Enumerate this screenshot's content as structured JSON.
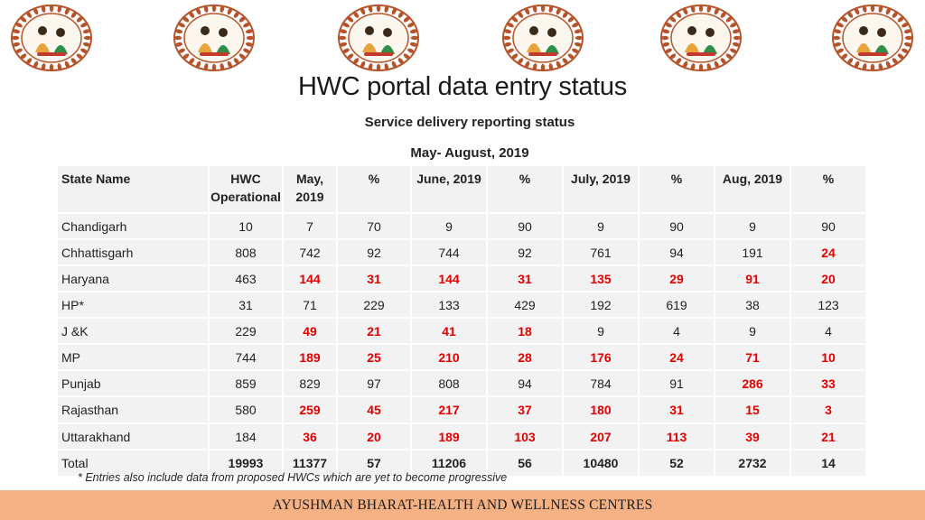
{
  "title": "HWC portal data entry status",
  "subtitle": "Service delivery reporting status",
  "period": "May- August, 2019",
  "logos": [
    "care-giver-illustration",
    "health-worker-illustration",
    "community-meeting-illustration",
    "screen-presentation-illustration",
    "counselling-illustration",
    "community-group-illustration"
  ],
  "table": {
    "headers": [
      "State Name",
      "HWC Operational",
      "May, 2019",
      "%",
      "June, 2019",
      "%",
      "July, 2019",
      "%",
      "Aug, 2019",
      "%"
    ],
    "rows": [
      {
        "cells": [
          "Chandigarh",
          "10",
          "7",
          "70",
          "9",
          "90",
          "9",
          "90",
          "9",
          "90"
        ],
        "red": []
      },
      {
        "cells": [
          "Chhattisgarh",
          "808",
          "742",
          "92",
          "744",
          "92",
          "761",
          "94",
          "191",
          "24"
        ],
        "red": [
          9
        ]
      },
      {
        "cells": [
          "Haryana",
          "463",
          "144",
          "31",
          "144",
          "31",
          "135",
          "29",
          "91",
          "20"
        ],
        "red": [
          2,
          3,
          4,
          5,
          6,
          7,
          8,
          9
        ]
      },
      {
        "cells": [
          "HP*",
          "31",
          "71",
          "229",
          "133",
          "429",
          "192",
          "619",
          "38",
          "123"
        ],
        "red": []
      },
      {
        "cells": [
          "J &K",
          "229",
          "49",
          "21",
          "41",
          "18",
          "9",
          "4",
          "9",
          "4"
        ],
        "red": [
          2,
          3,
          4,
          5
        ]
      },
      {
        "cells": [
          "MP",
          "744",
          "189",
          "25",
          "210",
          "28",
          "176",
          "24",
          "71",
          "10"
        ],
        "red": [
          2,
          3,
          4,
          5,
          6,
          7,
          8,
          9
        ]
      },
      {
        "cells": [
          "Punjab",
          "859",
          "829",
          "97",
          "808",
          "94",
          "784",
          "91",
          "286",
          "33"
        ],
        "red": [
          8,
          9
        ]
      },
      {
        "cells": [
          "Rajasthan",
          "580",
          "259",
          "45",
          "217",
          "37",
          "180",
          "31",
          "15",
          "3"
        ],
        "red": [
          2,
          3,
          4,
          5,
          6,
          7,
          8,
          9
        ]
      },
      {
        "cells": [
          "Uttarakhand",
          "184",
          "36",
          "20",
          "189",
          "103",
          "207",
          "113",
          "39",
          "21"
        ],
        "red": [
          2,
          3,
          4,
          5,
          6,
          7,
          8,
          9
        ]
      },
      {
        "cells": [
          "Total",
          "19993",
          "11377",
          "57",
          "11206",
          "56",
          "10480",
          "52",
          "2732",
          "14"
        ],
        "bold": true,
        "red": []
      }
    ]
  },
  "footnote": "* Entries also include data from proposed HWCs which are yet to become progressive",
  "footer": "AYUSHMAN BHARAT-HEALTH AND WELLNESS CENTRES",
  "colors": {
    "red": "#e00000",
    "footer_bg": "#f4b183",
    "cell_bg": "#f2f2f2",
    "logo_ring": "#b5542b"
  }
}
